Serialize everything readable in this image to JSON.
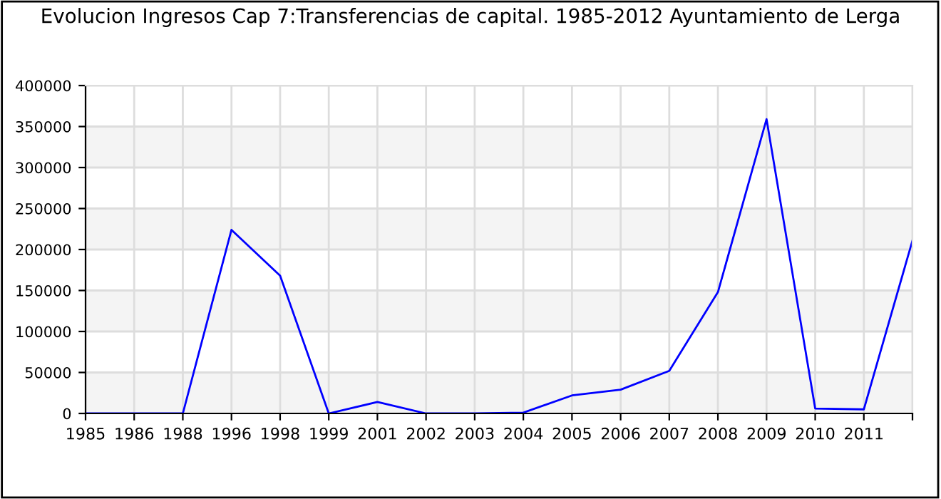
{
  "chart_data": {
    "type": "line",
    "title": "Evolucion Ingresos Cap 7:Transferencias de capital. 1985-2012 Ayuntamiento de Lerga",
    "categories": [
      "1985",
      "1986",
      "1988",
      "1996",
      "1998",
      "1999",
      "2001",
      "2002",
      "2003",
      "2004",
      "2005",
      "2006",
      "2007",
      "2008",
      "2009",
      "2010",
      "2011",
      null
    ],
    "series": [
      {
        "color": "#0000ff",
        "values": [
          0,
          0,
          0,
          224000,
          168000,
          0,
          14000,
          0,
          0,
          1000,
          22000,
          29000,
          52000,
          148000,
          359000,
          6000,
          5000,
          211000
        ]
      }
    ],
    "ylim": [
      0,
      400000
    ],
    "yticks": [
      0,
      50000,
      100000,
      150000,
      200000,
      250000,
      300000,
      350000,
      400000
    ],
    "grid": true,
    "legend": false,
    "marker": "none",
    "line_style": "solid"
  }
}
